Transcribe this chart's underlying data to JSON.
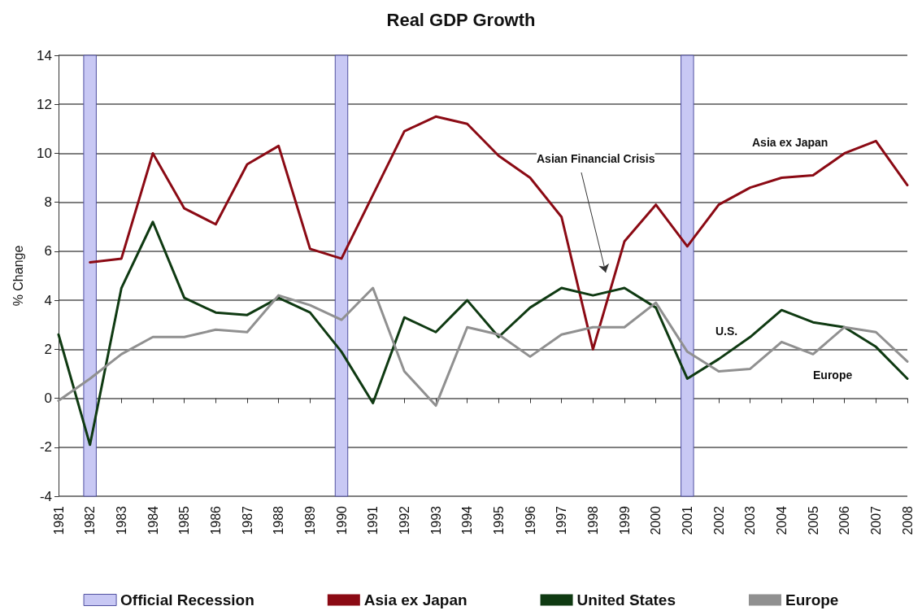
{
  "chart_data": {
    "type": "line",
    "title": "Real GDP Growth",
    "ylabel": "% Change",
    "x": [
      1981,
      1982,
      1983,
      1984,
      1985,
      1986,
      1987,
      1988,
      1989,
      1990,
      1991,
      1992,
      1993,
      1994,
      1995,
      1996,
      1997,
      1998,
      1999,
      2000,
      2001,
      2002,
      2003,
      2004,
      2005,
      2006,
      2007,
      2008
    ],
    "xlim": [
      1981,
      2008
    ],
    "xticks": [
      1981,
      1982,
      1983,
      1984,
      1985,
      1986,
      1987,
      1988,
      1989,
      1990,
      1991,
      1992,
      1993,
      1994,
      1995,
      1996,
      1997,
      1998,
      1999,
      2000,
      2001,
      2002,
      2003,
      2004,
      2005,
      2006,
      2007,
      2008
    ],
    "ylim": [
      -4,
      14
    ],
    "yticks": [
      -4,
      -2,
      0,
      2,
      4,
      6,
      8,
      10,
      12,
      14
    ],
    "series": [
      {
        "name": "Asia ex Japan",
        "color": "#8b0a14",
        "values": [
          null,
          5.55,
          5.7,
          10.0,
          7.75,
          7.1,
          9.55,
          10.3,
          6.1,
          5.7,
          8.3,
          10.9,
          11.5,
          11.2,
          9.9,
          9.0,
          7.4,
          2.0,
          6.4,
          7.9,
          6.2,
          7.9,
          8.6,
          9.0,
          9.1,
          10.0,
          10.5,
          8.7
        ]
      },
      {
        "name": "United States",
        "color": "#0f3a12",
        "values": [
          2.6,
          -1.9,
          4.5,
          7.2,
          4.1,
          3.5,
          3.4,
          4.1,
          3.5,
          1.9,
          -0.2,
          3.3,
          2.7,
          4.0,
          2.5,
          3.7,
          4.5,
          4.2,
          4.5,
          3.7,
          0.8,
          1.6,
          2.5,
          3.6,
          3.1,
          2.9,
          2.1,
          0.8
        ]
      },
      {
        "name": "Europe",
        "color": "#909090",
        "values": [
          -0.1,
          0.8,
          1.8,
          2.5,
          2.5,
          2.8,
          2.7,
          4.2,
          3.8,
          3.2,
          4.5,
          1.1,
          -0.3,
          2.9,
          2.6,
          1.7,
          2.6,
          2.9,
          2.9,
          3.9,
          1.9,
          1.1,
          1.2,
          2.3,
          1.8,
          2.9,
          2.7,
          1.5
        ]
      }
    ],
    "bands": [
      {
        "axis": "x",
        "from": 1981.8,
        "to": 1982.2,
        "label": "Official Recession",
        "color": "#c8c8f4"
      },
      {
        "axis": "x",
        "from": 1989.8,
        "to": 1990.2,
        "color": "#c8c8f4"
      },
      {
        "axis": "x",
        "from": 2000.8,
        "to": 2001.2,
        "color": "#c8c8f4"
      }
    ],
    "annotations": [
      "Asian Financial Crisis",
      "Asia ex Japan",
      "U.S.",
      "Europe"
    ],
    "grid": "y",
    "legend": "bottom",
    "marker": "none",
    "line_style": "solid"
  }
}
